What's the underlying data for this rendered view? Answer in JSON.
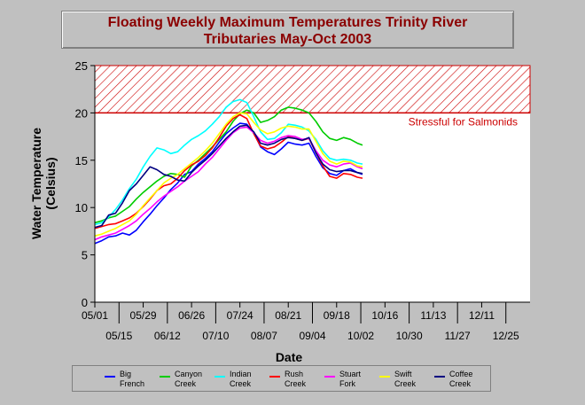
{
  "chart_data": {
    "type": "line",
    "title": "Floating Weekly Maximum Temperatures Trinity River",
    "subtitle": "Tributaries May-Oct 2003",
    "xlabel": "Date",
    "ylabel": [
      "Water Temperature",
      "(Celsius)"
    ],
    "ylim": [
      0,
      25
    ],
    "yticks": [
      0,
      5,
      10,
      15,
      20,
      25
    ],
    "xlim": [
      "2003-05-01",
      "2004-01-08"
    ],
    "xticks_top": [
      "05/01",
      "05/29",
      "06/26",
      "07/24",
      "08/21",
      "09/18",
      "10/16",
      "11/13",
      "12/11"
    ],
    "xticks_bottom": [
      "05/15",
      "06/12",
      "07/10",
      "08/07",
      "09/04",
      "10/02",
      "10/30",
      "11/27",
      "12/25"
    ],
    "grid": false,
    "threshold": {
      "y_from": 20,
      "y_to": 25,
      "label": "Stressful for Salmonids",
      "color": "#cc0000"
    },
    "series": [
      {
        "name": "Big French",
        "color": "#0000ff",
        "x": [
          "2003-05-01",
          "2003-05-05",
          "2003-05-09",
          "2003-05-13",
          "2003-05-17",
          "2003-05-21",
          "2003-05-25",
          "2003-05-29",
          "2003-06-02",
          "2003-06-06",
          "2003-06-10",
          "2003-06-14",
          "2003-06-18",
          "2003-06-22",
          "2003-06-26",
          "2003-06-30",
          "2003-07-04",
          "2003-07-08",
          "2003-07-12",
          "2003-07-16",
          "2003-07-20",
          "2003-07-24",
          "2003-07-28",
          "2003-08-01",
          "2003-08-05",
          "2003-08-09",
          "2003-08-13",
          "2003-08-17",
          "2003-08-21",
          "2003-08-25",
          "2003-08-29",
          "2003-09-02",
          "2003-09-06",
          "2003-09-10",
          "2003-09-14",
          "2003-09-18",
          "2003-09-22",
          "2003-09-26",
          "2003-09-30",
          "2003-10-03"
        ],
        "values": [
          6.2,
          6.5,
          6.9,
          7.0,
          7.3,
          7.1,
          7.6,
          8.5,
          9.3,
          10.2,
          11.0,
          11.9,
          12.6,
          13.5,
          13.8,
          14.6,
          15.2,
          15.9,
          16.9,
          17.8,
          18.4,
          18.9,
          18.8,
          17.9,
          16.4,
          15.9,
          15.6,
          16.2,
          16.9,
          16.7,
          16.6,
          16.8,
          15.4,
          14.2,
          13.6,
          13.4,
          13.9,
          14.1,
          13.7,
          13.5
        ]
      },
      {
        "name": "Canyon Creek",
        "color": "#00cc00",
        "x": [
          "2003-05-01",
          "2003-05-05",
          "2003-05-09",
          "2003-05-13",
          "2003-05-17",
          "2003-05-21",
          "2003-05-25",
          "2003-05-29",
          "2003-06-02",
          "2003-06-06",
          "2003-06-10",
          "2003-06-14",
          "2003-06-18",
          "2003-06-22",
          "2003-06-26",
          "2003-06-30",
          "2003-07-04",
          "2003-07-08",
          "2003-07-12",
          "2003-07-16",
          "2003-07-20",
          "2003-07-24",
          "2003-07-28",
          "2003-08-01",
          "2003-08-05",
          "2003-08-09",
          "2003-08-13",
          "2003-08-17",
          "2003-08-21",
          "2003-08-25",
          "2003-08-29",
          "2003-09-02",
          "2003-09-06",
          "2003-09-10",
          "2003-09-14",
          "2003-09-18",
          "2003-09-22",
          "2003-09-26",
          "2003-09-30",
          "2003-10-03"
        ],
        "values": [
          8.4,
          8.6,
          8.9,
          9.1,
          9.6,
          10.1,
          10.9,
          11.6,
          12.2,
          12.8,
          13.3,
          13.6,
          13.5,
          13.2,
          14.4,
          15.0,
          15.7,
          16.4,
          17.2,
          18.0,
          19.1,
          19.9,
          20.3,
          20.0,
          19.0,
          19.2,
          19.6,
          20.3,
          20.6,
          20.5,
          20.3,
          20.0,
          19.1,
          18.0,
          17.3,
          17.1,
          17.4,
          17.2,
          16.8,
          16.6
        ]
      },
      {
        "name": "Indian Creek",
        "color": "#00ffff",
        "x": [
          "2003-05-01",
          "2003-05-05",
          "2003-05-09",
          "2003-05-13",
          "2003-05-17",
          "2003-05-21",
          "2003-05-25",
          "2003-05-29",
          "2003-06-02",
          "2003-06-06",
          "2003-06-10",
          "2003-06-14",
          "2003-06-18",
          "2003-06-22",
          "2003-06-26",
          "2003-06-30",
          "2003-07-04",
          "2003-07-08",
          "2003-07-12",
          "2003-07-16",
          "2003-07-20",
          "2003-07-24",
          "2003-07-28",
          "2003-08-01",
          "2003-08-05",
          "2003-08-09",
          "2003-08-13",
          "2003-08-17",
          "2003-08-21",
          "2003-08-25",
          "2003-08-29",
          "2003-09-02",
          "2003-09-06",
          "2003-09-10",
          "2003-09-14",
          "2003-09-18",
          "2003-09-22",
          "2003-09-26",
          "2003-09-30",
          "2003-10-03"
        ],
        "values": [
          8.2,
          8.4,
          9.0,
          9.8,
          10.8,
          12.0,
          13.0,
          14.3,
          15.4,
          16.3,
          16.1,
          15.7,
          15.9,
          16.6,
          17.2,
          17.6,
          18.1,
          18.8,
          19.6,
          20.6,
          21.2,
          21.4,
          21.1,
          19.6,
          18.0,
          17.2,
          17.3,
          17.9,
          18.8,
          18.7,
          18.5,
          18.1,
          17.2,
          16.0,
          15.2,
          15.0,
          15.1,
          15.0,
          14.7,
          14.6
        ]
      },
      {
        "name": "Rush Creek",
        "color": "#ff0000",
        "x": [
          "2003-05-01",
          "2003-05-05",
          "2003-05-09",
          "2003-05-13",
          "2003-05-17",
          "2003-05-21",
          "2003-05-25",
          "2003-05-29",
          "2003-06-02",
          "2003-06-06",
          "2003-06-10",
          "2003-06-14",
          "2003-06-18",
          "2003-06-22",
          "2003-06-26",
          "2003-06-30",
          "2003-07-04",
          "2003-07-08",
          "2003-07-12",
          "2003-07-16",
          "2003-07-20",
          "2003-07-24",
          "2003-07-28",
          "2003-08-01",
          "2003-08-05",
          "2003-08-09",
          "2003-08-13",
          "2003-08-17",
          "2003-08-21",
          "2003-08-25",
          "2003-08-29",
          "2003-09-02",
          "2003-09-06",
          "2003-09-10",
          "2003-09-14",
          "2003-09-18",
          "2003-09-22",
          "2003-09-26",
          "2003-09-30",
          "2003-10-03"
        ],
        "values": [
          7.8,
          8.0,
          8.2,
          8.3,
          8.6,
          8.9,
          9.4,
          10.1,
          10.9,
          11.8,
          12.3,
          12.5,
          13.1,
          13.9,
          14.5,
          14.9,
          15.5,
          16.3,
          17.4,
          18.6,
          19.4,
          19.8,
          19.4,
          17.8,
          16.5,
          16.2,
          16.4,
          16.9,
          17.5,
          17.3,
          17.1,
          17.3,
          15.8,
          14.4,
          13.3,
          13.1,
          13.6,
          13.5,
          13.2,
          13.1
        ]
      },
      {
        "name": "Stuart Fork",
        "color": "#ff00ff",
        "x": [
          "2003-05-01",
          "2003-05-05",
          "2003-05-09",
          "2003-05-13",
          "2003-05-17",
          "2003-05-21",
          "2003-05-25",
          "2003-05-29",
          "2003-06-02",
          "2003-06-06",
          "2003-06-10",
          "2003-06-14",
          "2003-06-18",
          "2003-06-22",
          "2003-06-26",
          "2003-06-30",
          "2003-07-04",
          "2003-07-08",
          "2003-07-12",
          "2003-07-16",
          "2003-07-20",
          "2003-07-24",
          "2003-07-28",
          "2003-08-01",
          "2003-08-05",
          "2003-08-09",
          "2003-08-13",
          "2003-08-17",
          "2003-08-21",
          "2003-08-25",
          "2003-08-29",
          "2003-09-02",
          "2003-09-06",
          "2003-09-10",
          "2003-09-14",
          "2003-09-18",
          "2003-09-22",
          "2003-09-26",
          "2003-09-30",
          "2003-10-03"
        ],
        "values": [
          6.6,
          6.9,
          7.1,
          7.3,
          7.7,
          8.1,
          8.6,
          9.3,
          9.9,
          10.6,
          11.2,
          11.7,
          12.2,
          12.8,
          13.3,
          13.8,
          14.6,
          15.3,
          16.2,
          17.1,
          17.9,
          18.4,
          18.5,
          17.9,
          17.1,
          16.8,
          17.0,
          17.4,
          17.6,
          17.5,
          17.2,
          17.3,
          16.0,
          15.0,
          14.5,
          14.3,
          14.6,
          14.7,
          14.3,
          14.1
        ]
      },
      {
        "name": "Swift Creek",
        "color": "#ffff00",
        "x": [
          "2003-05-01",
          "2003-05-05",
          "2003-05-09",
          "2003-05-13",
          "2003-05-17",
          "2003-05-21",
          "2003-05-25",
          "2003-05-29",
          "2003-06-02",
          "2003-06-06",
          "2003-06-10",
          "2003-06-14",
          "2003-06-18",
          "2003-06-22",
          "2003-06-26",
          "2003-06-30",
          "2003-07-04",
          "2003-07-08",
          "2003-07-12",
          "2003-07-16",
          "2003-07-20",
          "2003-07-24",
          "2003-07-28",
          "2003-08-01",
          "2003-08-05",
          "2003-08-09",
          "2003-08-13",
          "2003-08-17",
          "2003-08-21",
          "2003-08-25",
          "2003-08-29",
          "2003-09-02",
          "2003-09-06",
          "2003-09-10",
          "2003-09-14",
          "2003-09-18",
          "2003-09-22",
          "2003-09-26",
          "2003-09-30",
          "2003-10-03"
        ],
        "values": [
          7.0,
          7.2,
          7.5,
          7.8,
          8.2,
          8.6,
          9.3,
          10.2,
          11.0,
          11.8,
          12.6,
          13.1,
          13.5,
          14.1,
          14.7,
          15.3,
          16.0,
          16.8,
          17.8,
          18.8,
          19.6,
          20.0,
          19.9,
          19.0,
          18.2,
          17.8,
          18.0,
          18.4,
          18.6,
          18.5,
          18.3,
          18.3,
          17.0,
          15.7,
          14.9,
          14.6,
          14.9,
          14.8,
          14.4,
          14.3
        ]
      },
      {
        "name": "Coffee Creek",
        "color": "#000080",
        "x": [
          "2003-05-01",
          "2003-05-05",
          "2003-05-09",
          "2003-05-13",
          "2003-05-17",
          "2003-05-21",
          "2003-05-25",
          "2003-05-29",
          "2003-06-02",
          "2003-06-06",
          "2003-06-10",
          "2003-06-14",
          "2003-06-18",
          "2003-06-22",
          "2003-06-26",
          "2003-06-30",
          "2003-07-04",
          "2003-07-08",
          "2003-07-12",
          "2003-07-16",
          "2003-07-20",
          "2003-07-24",
          "2003-07-28",
          "2003-08-01",
          "2003-08-05",
          "2003-08-09",
          "2003-08-13",
          "2003-08-17",
          "2003-08-21",
          "2003-08-25",
          "2003-08-29",
          "2003-09-02",
          "2003-09-06",
          "2003-09-10",
          "2003-09-14",
          "2003-09-18",
          "2003-09-22",
          "2003-09-26",
          "2003-09-30",
          "2003-10-03"
        ],
        "values": [
          7.9,
          8.1,
          9.2,
          9.4,
          10.5,
          11.8,
          12.5,
          13.4,
          14.3,
          14.0,
          13.5,
          13.3,
          12.9,
          12.8,
          13.7,
          14.4,
          15.0,
          15.7,
          16.5,
          17.3,
          18.0,
          18.6,
          18.7,
          18.0,
          16.8,
          16.6,
          16.8,
          17.2,
          17.4,
          17.3,
          17.1,
          17.4,
          15.8,
          14.6,
          14.0,
          13.8,
          13.9,
          13.9,
          13.7,
          13.6
        ]
      }
    ],
    "legend": [
      {
        "line1": "Big",
        "line2": "French"
      },
      {
        "line1": "Canyon",
        "line2": "Creek"
      },
      {
        "line1": "Indian",
        "line2": "Creek"
      },
      {
        "line1": "Rush",
        "line2": "Creek"
      },
      {
        "line1": "Stuart",
        "line2": "Fork"
      },
      {
        "line1": "Swift",
        "line2": "Creek"
      },
      {
        "line1": "Coffee",
        "line2": "Creek"
      }
    ]
  }
}
